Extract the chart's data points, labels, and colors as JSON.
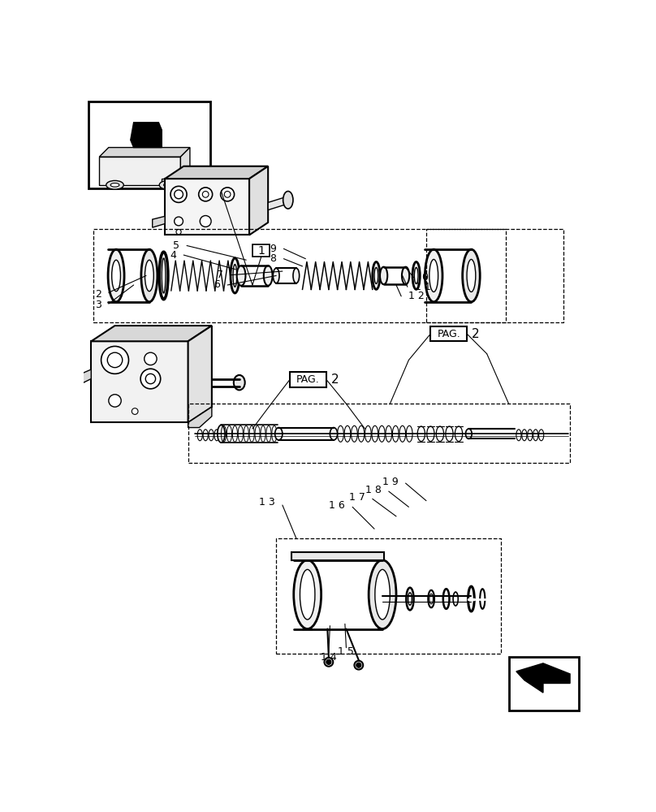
{
  "bg_color": "#ffffff",
  "line_color": "#000000",
  "fig_width": 8.08,
  "fig_height": 10.0
}
